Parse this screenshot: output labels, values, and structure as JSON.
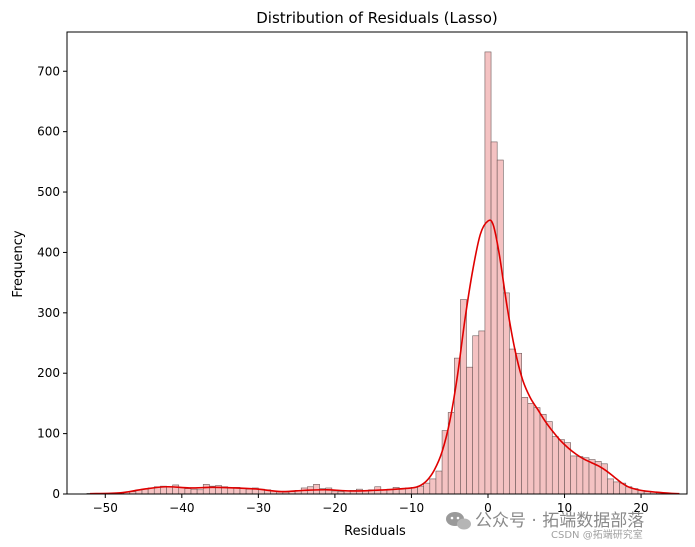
{
  "chart_data": {
    "type": "histogram",
    "title": "Distribution of Residuals (Lasso)",
    "xlabel": "Residuals",
    "ylabel": "Frequency",
    "xlim": [
      -55,
      26
    ],
    "ylim": [
      0,
      765
    ],
    "x_ticks": [
      -50,
      -40,
      -30,
      -20,
      -10,
      0,
      10,
      20
    ],
    "y_ticks": [
      0,
      100,
      200,
      300,
      400,
      500,
      600,
      700
    ],
    "grid": false,
    "bar_color": "#f4c2c2",
    "bar_edge_color": "#6e5a5a",
    "kde_color": "#e00000",
    "bins": [
      {
        "x": -52.0,
        "count": 1
      },
      {
        "x": -51.2,
        "count": 0
      },
      {
        "x": -50.4,
        "count": 1
      },
      {
        "x": -49.6,
        "count": 1
      },
      {
        "x": -48.8,
        "count": 2
      },
      {
        "x": -48.0,
        "count": 2
      },
      {
        "x": -47.2,
        "count": 3
      },
      {
        "x": -46.4,
        "count": 4
      },
      {
        "x": -45.6,
        "count": 7
      },
      {
        "x": -44.8,
        "count": 8
      },
      {
        "x": -44.0,
        "count": 10
      },
      {
        "x": -43.2,
        "count": 12
      },
      {
        "x": -42.4,
        "count": 13
      },
      {
        "x": -41.6,
        "count": 12
      },
      {
        "x": -40.8,
        "count": 15
      },
      {
        "x": -40.0,
        "count": 11
      },
      {
        "x": -39.2,
        "count": 9
      },
      {
        "x": -38.4,
        "count": 8
      },
      {
        "x": -37.6,
        "count": 7
      },
      {
        "x": -36.8,
        "count": 16
      },
      {
        "x": -36.0,
        "count": 13
      },
      {
        "x": -35.2,
        "count": 14
      },
      {
        "x": -34.4,
        "count": 12
      },
      {
        "x": -33.6,
        "count": 10
      },
      {
        "x": -32.8,
        "count": 11
      },
      {
        "x": -32.0,
        "count": 9
      },
      {
        "x": -31.2,
        "count": 8
      },
      {
        "x": -30.4,
        "count": 10
      },
      {
        "x": -29.6,
        "count": 8
      },
      {
        "x": -28.8,
        "count": 7
      },
      {
        "x": -28.0,
        "count": 5
      },
      {
        "x": -27.2,
        "count": 4
      },
      {
        "x": -26.4,
        "count": 3
      },
      {
        "x": -25.6,
        "count": 4
      },
      {
        "x": -24.8,
        "count": 6
      },
      {
        "x": -24.0,
        "count": 10
      },
      {
        "x": -23.2,
        "count": 12
      },
      {
        "x": -22.4,
        "count": 16
      },
      {
        "x": -21.6,
        "count": 9
      },
      {
        "x": -20.8,
        "count": 10
      },
      {
        "x": -20.0,
        "count": 5
      },
      {
        "x": -19.2,
        "count": 4
      },
      {
        "x": -18.4,
        "count": 5
      },
      {
        "x": -17.6,
        "count": 6
      },
      {
        "x": -16.8,
        "count": 8
      },
      {
        "x": -16.0,
        "count": 6
      },
      {
        "x": -15.2,
        "count": 7
      },
      {
        "x": -14.4,
        "count": 12
      },
      {
        "x": -13.6,
        "count": 7
      },
      {
        "x": -12.8,
        "count": 8
      },
      {
        "x": -12.0,
        "count": 11
      },
      {
        "x": -11.2,
        "count": 9
      },
      {
        "x": -10.4,
        "count": 10
      },
      {
        "x": -9.6,
        "count": 11
      },
      {
        "x": -8.8,
        "count": 13
      },
      {
        "x": -8.0,
        "count": 18
      },
      {
        "x": -7.2,
        "count": 25
      },
      {
        "x": -6.4,
        "count": 38
      },
      {
        "x": -5.6,
        "count": 105
      },
      {
        "x": -4.8,
        "count": 135
      },
      {
        "x": -4.0,
        "count": 225
      },
      {
        "x": -3.2,
        "count": 322
      },
      {
        "x": -2.4,
        "count": 210
      },
      {
        "x": -1.6,
        "count": 262
      },
      {
        "x": -0.8,
        "count": 270
      },
      {
        "x": 0.0,
        "count": 732
      },
      {
        "x": 0.8,
        "count": 583
      },
      {
        "x": 1.6,
        "count": 553
      },
      {
        "x": 2.4,
        "count": 333
      },
      {
        "x": 3.2,
        "count": 240
      },
      {
        "x": 4.0,
        "count": 233
      },
      {
        "x": 4.8,
        "count": 160
      },
      {
        "x": 5.6,
        "count": 150
      },
      {
        "x": 6.4,
        "count": 143
      },
      {
        "x": 7.2,
        "count": 132
      },
      {
        "x": 8.0,
        "count": 120
      },
      {
        "x": 8.8,
        "count": 95
      },
      {
        "x": 9.6,
        "count": 90
      },
      {
        "x": 10.4,
        "count": 85
      },
      {
        "x": 11.2,
        "count": 63
      },
      {
        "x": 12.0,
        "count": 62
      },
      {
        "x": 12.8,
        "count": 60
      },
      {
        "x": 13.6,
        "count": 57
      },
      {
        "x": 14.4,
        "count": 54
      },
      {
        "x": 15.2,
        "count": 50
      },
      {
        "x": 16.0,
        "count": 25
      },
      {
        "x": 16.8,
        "count": 20
      },
      {
        "x": 17.6,
        "count": 18
      },
      {
        "x": 18.4,
        "count": 12
      },
      {
        "x": 19.2,
        "count": 9
      },
      {
        "x": 20.0,
        "count": 6
      },
      {
        "x": 20.8,
        "count": 4
      },
      {
        "x": 21.6,
        "count": 3
      },
      {
        "x": 22.4,
        "count": 2
      },
      {
        "x": 23.2,
        "count": 1
      },
      {
        "x": 24.0,
        "count": 1
      }
    ],
    "bin_width": 0.8,
    "kde": [
      [
        -52,
        0.5
      ],
      [
        -48,
        2
      ],
      [
        -45,
        8
      ],
      [
        -42,
        12
      ],
      [
        -39,
        10
      ],
      [
        -36,
        11
      ],
      [
        -33,
        10
      ],
      [
        -30,
        8
      ],
      [
        -27,
        4
      ],
      [
        -24,
        6
      ],
      [
        -21,
        7
      ],
      [
        -18,
        5
      ],
      [
        -15,
        6
      ],
      [
        -12,
        8
      ],
      [
        -10,
        10
      ],
      [
        -9,
        13
      ],
      [
        -8,
        22
      ],
      [
        -7,
        40
      ],
      [
        -6,
        70
      ],
      [
        -5,
        120
      ],
      [
        -4,
        195
      ],
      [
        -3,
        290
      ],
      [
        -2,
        370
      ],
      [
        -1,
        430
      ],
      [
        0,
        452
      ],
      [
        0.7,
        445
      ],
      [
        1.5,
        395
      ],
      [
        2.5,
        310
      ],
      [
        3.5,
        240
      ],
      [
        4.5,
        190
      ],
      [
        5.5,
        160
      ],
      [
        6.5,
        140
      ],
      [
        7.5,
        120
      ],
      [
        8.5,
        103
      ],
      [
        9.5,
        88
      ],
      [
        10.5,
        76
      ],
      [
        11.5,
        66
      ],
      [
        12.5,
        58
      ],
      [
        13.5,
        52
      ],
      [
        14.5,
        46
      ],
      [
        15.5,
        38
      ],
      [
        16.5,
        28
      ],
      [
        17.5,
        18
      ],
      [
        18.5,
        11
      ],
      [
        20,
        6
      ],
      [
        22,
        3
      ],
      [
        24,
        1
      ],
      [
        25,
        0.5
      ]
    ]
  },
  "watermark": {
    "text": "公众号 · 拓端数据部落",
    "icon": "wechat-icon",
    "subtext": "CSDN @拓端研究室"
  }
}
